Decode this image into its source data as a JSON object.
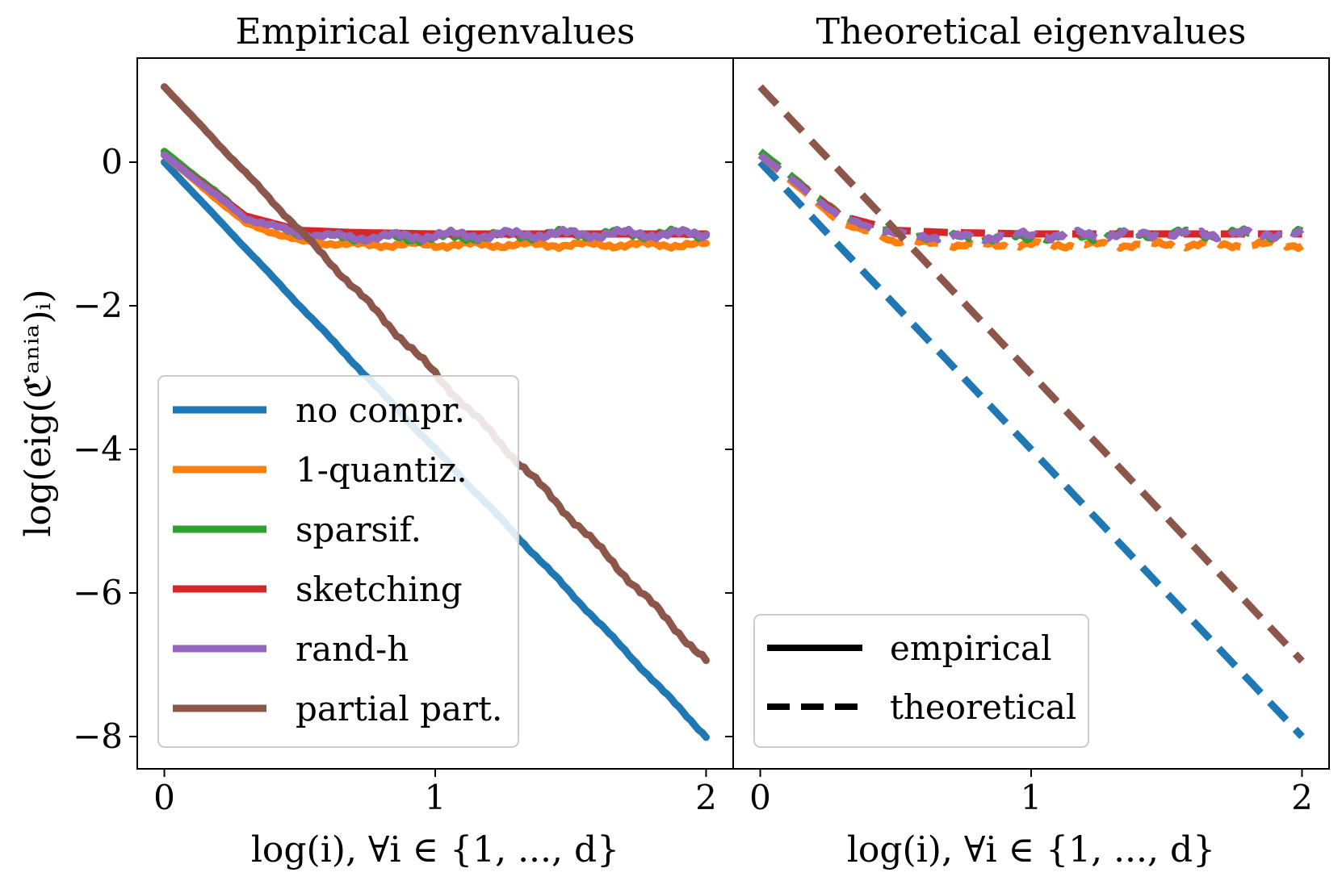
{
  "figure": {
    "ylabel": "log(eig(ℭᵃⁿⁱᵃ)ᵢ)",
    "xlabel_text": "log(i), ∀i ∈ {1, ..., d}"
  },
  "chart_data": [
    {
      "type": "line",
      "title": "Empirical eigenvalues",
      "xlabel": "log(i), ∀i ∈ {1, ..., d}",
      "ylabel": "log(eig(ℭᵃⁿⁱᵃ)ᵢ)",
      "xlim": [
        -0.1,
        2.1
      ],
      "ylim": [
        -8.45,
        1.45
      ],
      "xticks": [
        0,
        1,
        2
      ],
      "xtick_labels": [
        "0",
        "1",
        "2"
      ],
      "yticks": [
        0,
        -2,
        -4,
        -6,
        -8
      ],
      "ytick_labels": [
        "0",
        "−2",
        "−4",
        "−6",
        "−8"
      ],
      "style": "solid",
      "legend_position": "lower-left",
      "series": [
        {
          "name": "no compr.",
          "color": "#1f77b4",
          "line": [
            [
              0,
              0.0
            ],
            [
              2,
              -8.0
            ]
          ],
          "noise": 0.02
        },
        {
          "name": "1-quantiz.",
          "color": "#ff7f0e",
          "x": [
            0,
            0.3,
            0.5,
            0.7,
            1.0,
            1.5,
            2.0
          ],
          "y": [
            0.1,
            -0.85,
            -1.1,
            -1.15,
            -1.15,
            -1.15,
            -1.15
          ],
          "noise": 0.05
        },
        {
          "name": "sparsif.",
          "color": "#2ca02c",
          "x": [
            0,
            0.3,
            0.5,
            0.7,
            1.0,
            1.5,
            2.0
          ],
          "y": [
            0.15,
            -0.75,
            -1.0,
            -1.05,
            -1.05,
            -1.0,
            -1.0
          ],
          "noise": 0.07
        },
        {
          "name": "sketching",
          "color": "#d62728",
          "x": [
            0,
            0.3,
            0.5,
            0.7,
            1.0,
            1.5,
            2.0
          ],
          "y": [
            0.1,
            -0.75,
            -0.95,
            -0.98,
            -1.0,
            -1.0,
            -1.0
          ],
          "noise": 0.0
        },
        {
          "name": "rand-h",
          "color": "#9467bd",
          "x": [
            0,
            0.3,
            0.5,
            0.7,
            1.0,
            1.5,
            2.0
          ],
          "y": [
            0.1,
            -0.78,
            -1.0,
            -1.05,
            -1.02,
            -1.0,
            -1.0
          ],
          "noise": 0.07
        },
        {
          "name": "partial part.",
          "color": "#8c564b",
          "line": [
            [
              0,
              1.05
            ],
            [
              2,
              -6.95
            ]
          ],
          "noise": 0.05
        }
      ]
    },
    {
      "type": "line",
      "title": "Theoretical eigenvalues",
      "xlabel": "log(i), ∀i ∈ {1, ..., d}",
      "xlim": [
        -0.1,
        2.1
      ],
      "ylim": [
        -8.45,
        1.45
      ],
      "xticks": [
        0,
        1,
        2
      ],
      "xtick_labels": [
        "0",
        "1",
        "2"
      ],
      "yticks": [
        0,
        -2,
        -4,
        -6,
        -8
      ],
      "style": "dashed",
      "legend_position": "lower-left",
      "legend": [
        {
          "label": "empirical",
          "style": "solid"
        },
        {
          "label": "theoretical",
          "style": "dashed"
        }
      ],
      "series": [
        {
          "name": "no compr.",
          "color": "#1f77b4",
          "line": [
            [
              0,
              0.0
            ],
            [
              2,
              -8.0
            ]
          ],
          "noise": 0.0
        },
        {
          "name": "1-quantiz.",
          "color": "#ff7f0e",
          "x": [
            0,
            0.3,
            0.5,
            0.7,
            1.0,
            1.5,
            2.0
          ],
          "y": [
            0.1,
            -0.85,
            -1.1,
            -1.15,
            -1.15,
            -1.15,
            -1.15
          ],
          "noise": 0.05
        },
        {
          "name": "sparsif.",
          "color": "#2ca02c",
          "x": [
            0,
            0.3,
            0.5,
            0.7,
            1.0,
            1.5,
            2.0
          ],
          "y": [
            0.15,
            -0.75,
            -1.0,
            -1.05,
            -1.05,
            -1.0,
            -1.0
          ],
          "noise": 0.07
        },
        {
          "name": "sketching",
          "color": "#d62728",
          "x": [
            0,
            0.3,
            0.5,
            0.7,
            1.0,
            1.5,
            2.0
          ],
          "y": [
            0.1,
            -0.75,
            -0.95,
            -0.98,
            -1.0,
            -1.0,
            -1.0
          ],
          "noise": 0.0
        },
        {
          "name": "rand-h",
          "color": "#9467bd",
          "x": [
            0,
            0.3,
            0.5,
            0.7,
            1.0,
            1.5,
            2.0
          ],
          "y": [
            0.1,
            -0.78,
            -1.0,
            -1.05,
            -1.02,
            -1.0,
            -1.0
          ],
          "noise": 0.07
        },
        {
          "name": "partial part.",
          "color": "#8c564b",
          "line": [
            [
              0,
              1.05
            ],
            [
              2,
              -6.95
            ]
          ],
          "noise": 0.0
        }
      ]
    }
  ]
}
